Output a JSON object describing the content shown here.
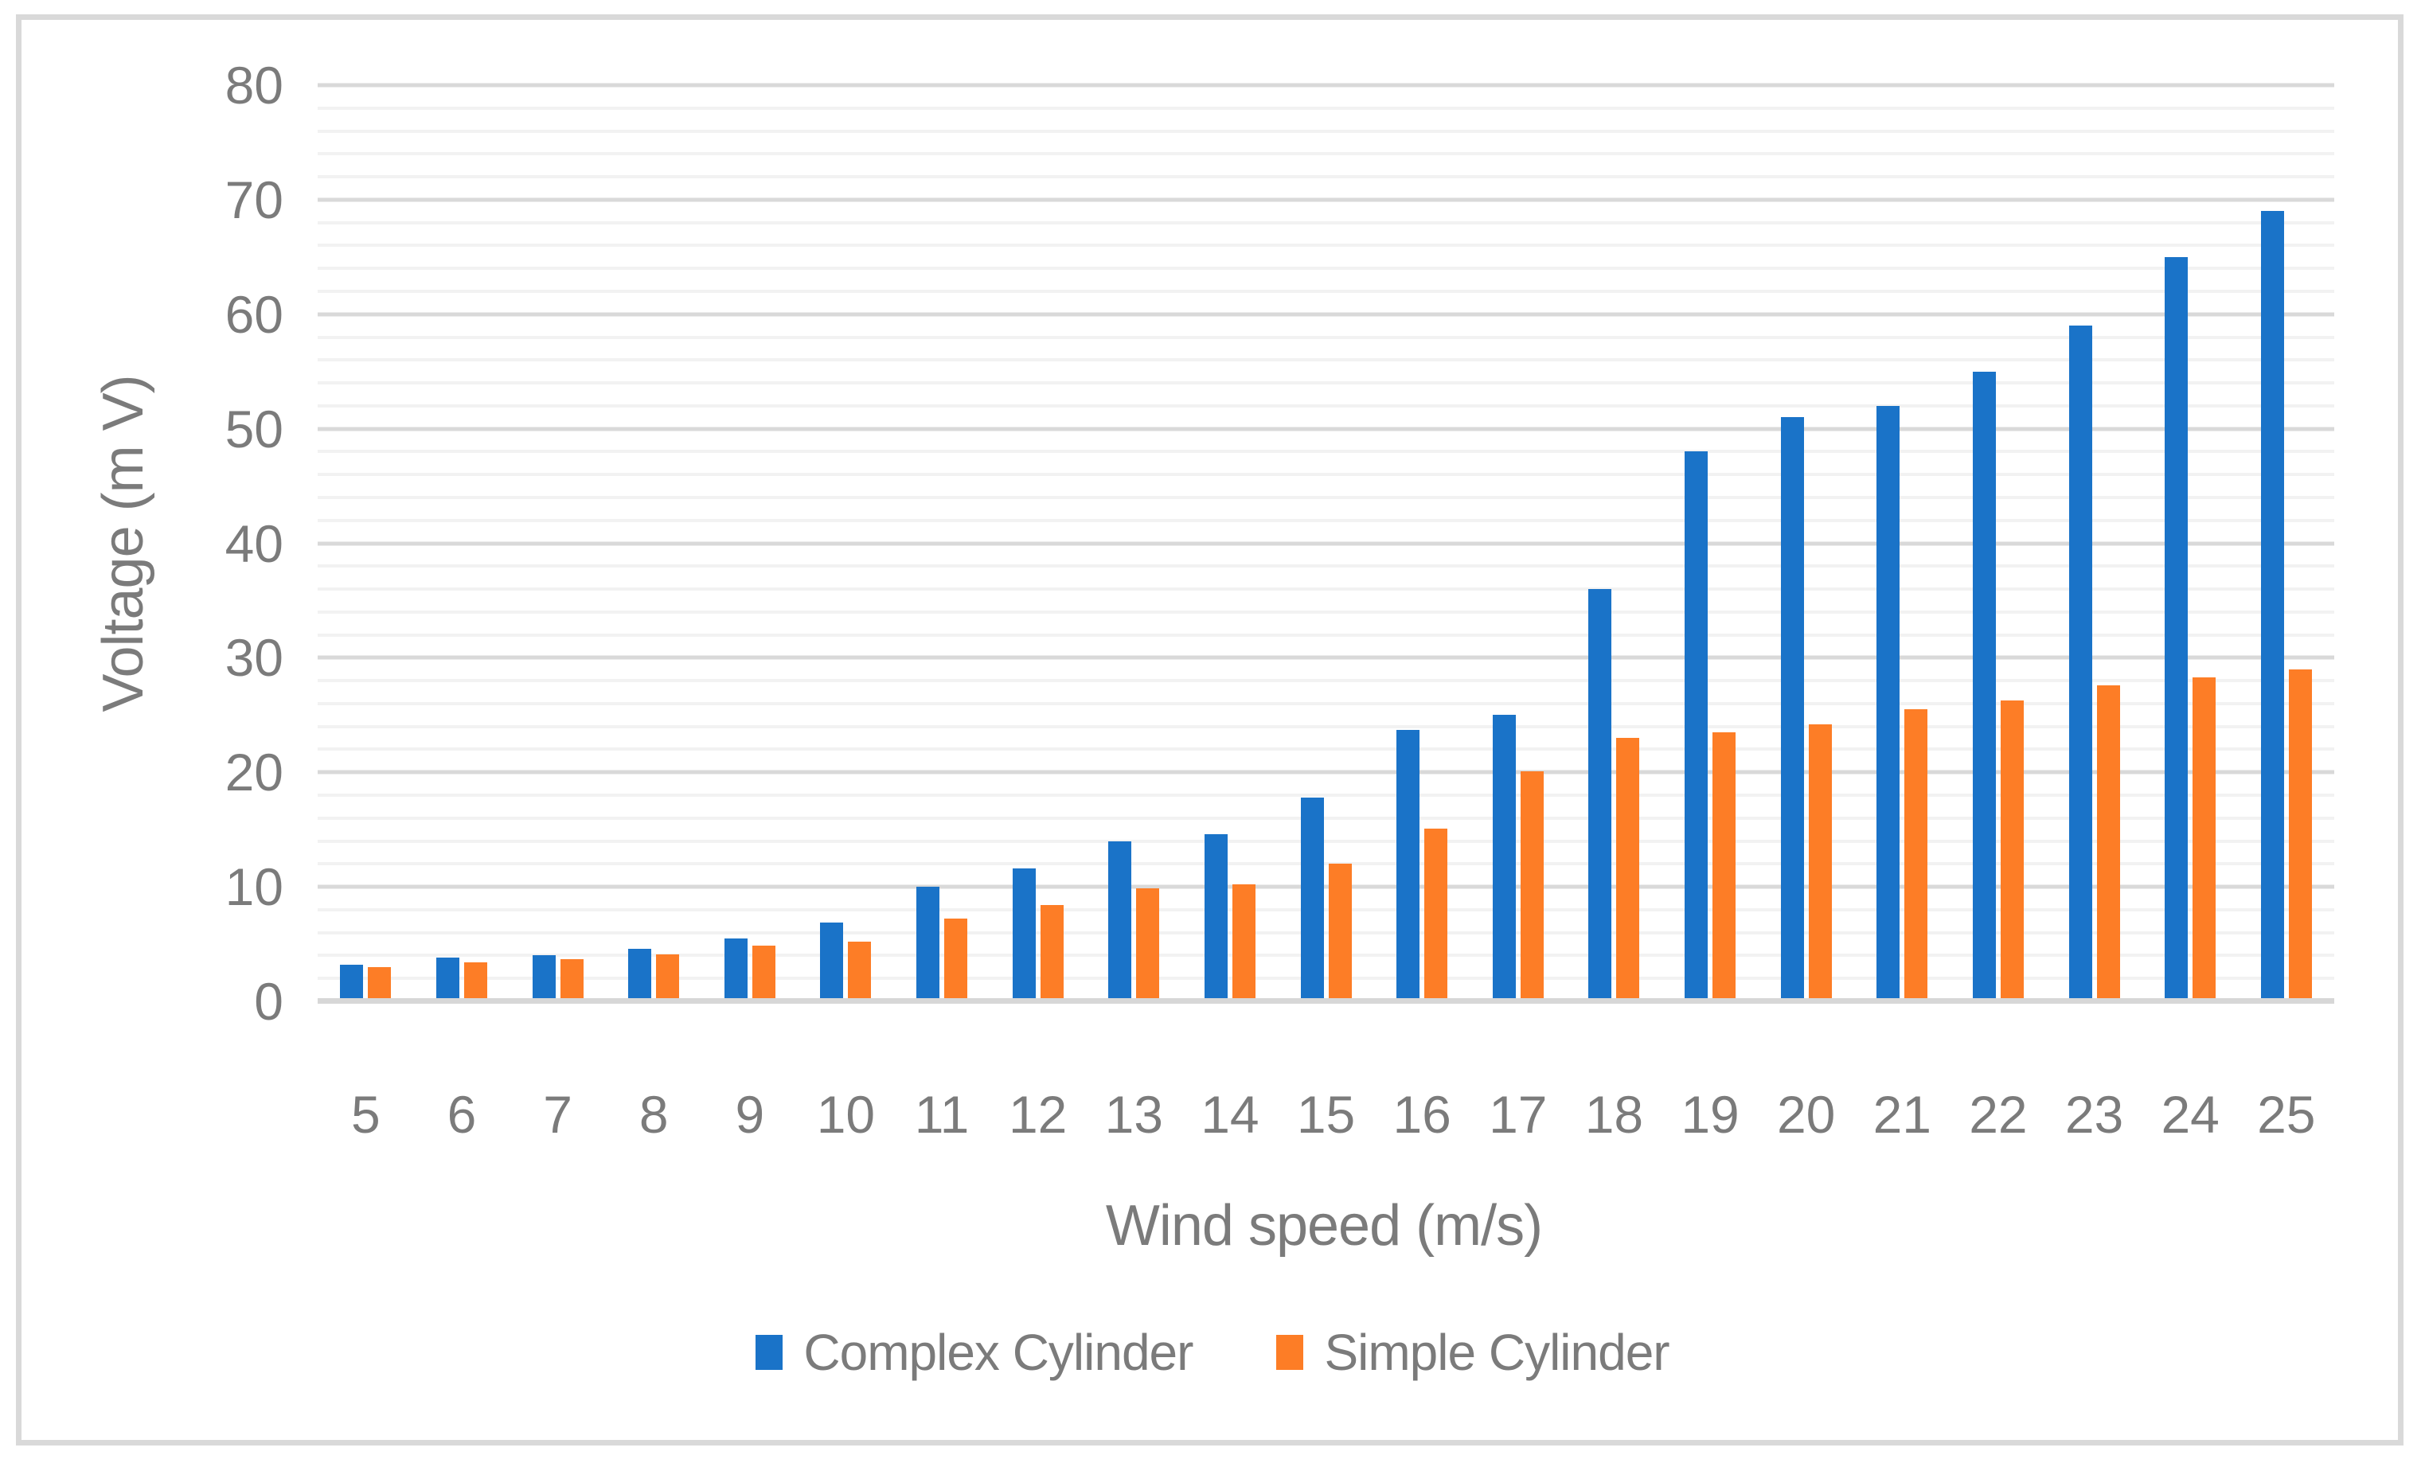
{
  "figure": {
    "background_color": "#ffffff",
    "border_color": "#d9d9d9"
  },
  "chart_data": {
    "type": "bar",
    "title": "",
    "xlabel": "Wind speed (m/s)",
    "ylabel": "Voltage (m V)",
    "categories": [
      "5",
      "6",
      "7",
      "8",
      "9",
      "10",
      "11",
      "12",
      "13",
      "14",
      "15",
      "16",
      "17",
      "18",
      "19",
      "20",
      "21",
      "22",
      "23",
      "24",
      "25"
    ],
    "series": [
      {
        "name": "Complex Cylinder",
        "color": "#1a73c8",
        "values": [
          3.2,
          3.8,
          4.0,
          4.6,
          5.5,
          6.9,
          10.0,
          11.6,
          14.0,
          14.6,
          17.8,
          23.7,
          25.0,
          36.0,
          48.0,
          51.0,
          52.0,
          55.0,
          59.0,
          65.0,
          69.0
        ]
      },
      {
        "name": "Simple Cylinder",
        "color": "#fd7d26",
        "values": [
          3.0,
          3.4,
          3.7,
          4.1,
          4.9,
          5.2,
          7.2,
          8.4,
          9.9,
          10.2,
          12.0,
          15.1,
          20.1,
          23.0,
          23.5,
          24.2,
          25.5,
          26.3,
          27.6,
          28.3,
          29.0
        ]
      }
    ],
    "ylim": [
      0,
      80
    ],
    "y_major_step": 10,
    "y_minor_step": 2,
    "y_tick_labels": [
      "0",
      "10",
      "20",
      "30",
      "40",
      "50",
      "60",
      "70",
      "80"
    ],
    "grid": {
      "shown": true,
      "major_color": "#d9d9d9",
      "minor_color": "#f2f2f2",
      "baseline_color": "#d7d7d7"
    },
    "legend_position": "bottom",
    "text_color": "#7b7b7b"
  },
  "legend": {
    "items": [
      {
        "label": "Complex Cylinder",
        "color": "#1a73c8"
      },
      {
        "label": "Simple Cylinder",
        "color": "#fd7d26"
      }
    ]
  }
}
